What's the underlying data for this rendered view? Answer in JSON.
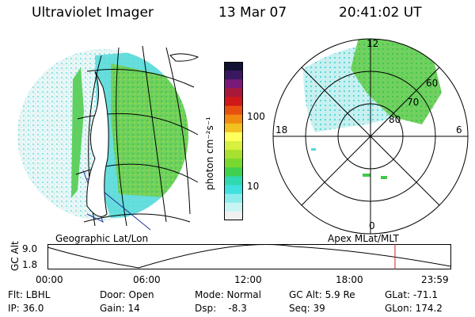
{
  "header": {
    "instrument": "Ultraviolet Imager",
    "date": "13 Mar 07",
    "time": "20:41:02 UT"
  },
  "left_panel": {
    "caption": "Geographic Lat/Lon"
  },
  "right_panel": {
    "caption": "Apex MLat/MLT",
    "mlt_labels": [
      "12",
      "18",
      "6",
      "0"
    ],
    "lat_labels": [
      "60",
      "70",
      "80"
    ]
  },
  "colorbar": {
    "label": "photon cm⁻²s⁻¹",
    "ticks": [
      "100",
      "10"
    ],
    "colors": [
      "#111133",
      "#3a1860",
      "#7a1a78",
      "#a81838",
      "#d01818",
      "#e85010",
      "#f08a10",
      "#f2c020",
      "#ffff60",
      "#d8f040",
      "#a8e030",
      "#78d830",
      "#40d050",
      "#30d8b0",
      "#40e0e0",
      "#8cecec",
      "#c8f4f4",
      "#f0f0f0"
    ]
  },
  "timeline": {
    "y_label": "GC Alt",
    "y_ticks": [
      "9.0",
      "1.8"
    ],
    "x_ticks": [
      "00:00",
      "06:00",
      "12:00",
      "18:00",
      "23:59"
    ],
    "current_time": "20:41",
    "marker_color": "#cc2222",
    "curve_color": "#000000"
  },
  "info": {
    "row1": [
      "Flt: LBHL",
      "Door: Open",
      "Mode: Normal",
      "GC Alt: 5.9 Re",
      "GLat: -71.1"
    ],
    "row2": [
      "IP: 36.0",
      "Gain: 14",
      "Dsp:    -8.3",
      "Seq: 39",
      "GLon: 174.2"
    ]
  },
  "palette": {
    "aurora_green": "#40c848",
    "aurora_lime": "#a8e030",
    "cyan_bg": "#50d8d8",
    "pale_cyan": "#c8f0f0"
  }
}
